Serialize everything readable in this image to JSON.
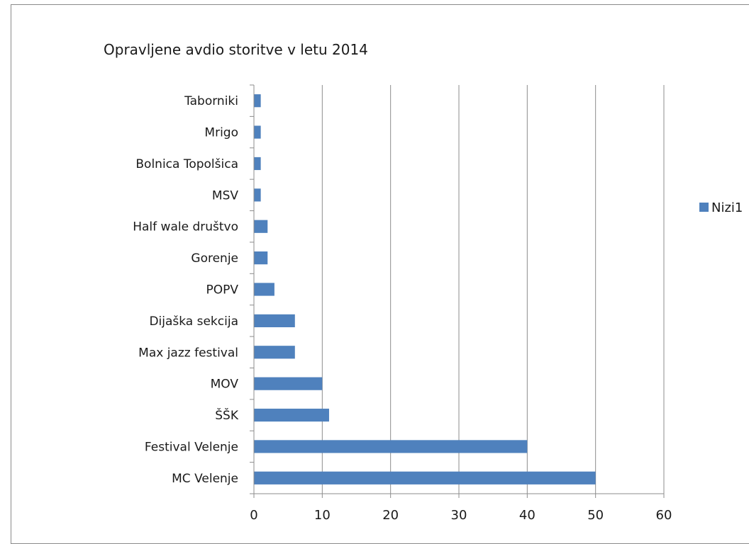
{
  "chart_data": {
    "type": "bar",
    "orientation": "horizontal",
    "title": "Opravljene avdio storitve v letu 2014",
    "xlabel": "",
    "ylabel": "",
    "categories": [
      "MC Velenje",
      "Festival Velenje",
      "ŠŠK",
      "MOV",
      "Max jazz festival",
      "Dijaška sekcija",
      "POPV",
      "Gorenje",
      "Half wale društvo",
      "MSV",
      "Bolnica Topolšica",
      "Mrigo",
      "Taborniki"
    ],
    "series": [
      {
        "name": "Nizi1",
        "color": "#4f81bd",
        "values": [
          50,
          40,
          11,
          10,
          6,
          6,
          3,
          2,
          2,
          1,
          1,
          1,
          1
        ]
      }
    ],
    "xlim": [
      0,
      60
    ],
    "xticks": [
      0,
      10,
      20,
      30,
      40,
      50,
      60
    ],
    "grid": "vertical",
    "legend": "right"
  }
}
